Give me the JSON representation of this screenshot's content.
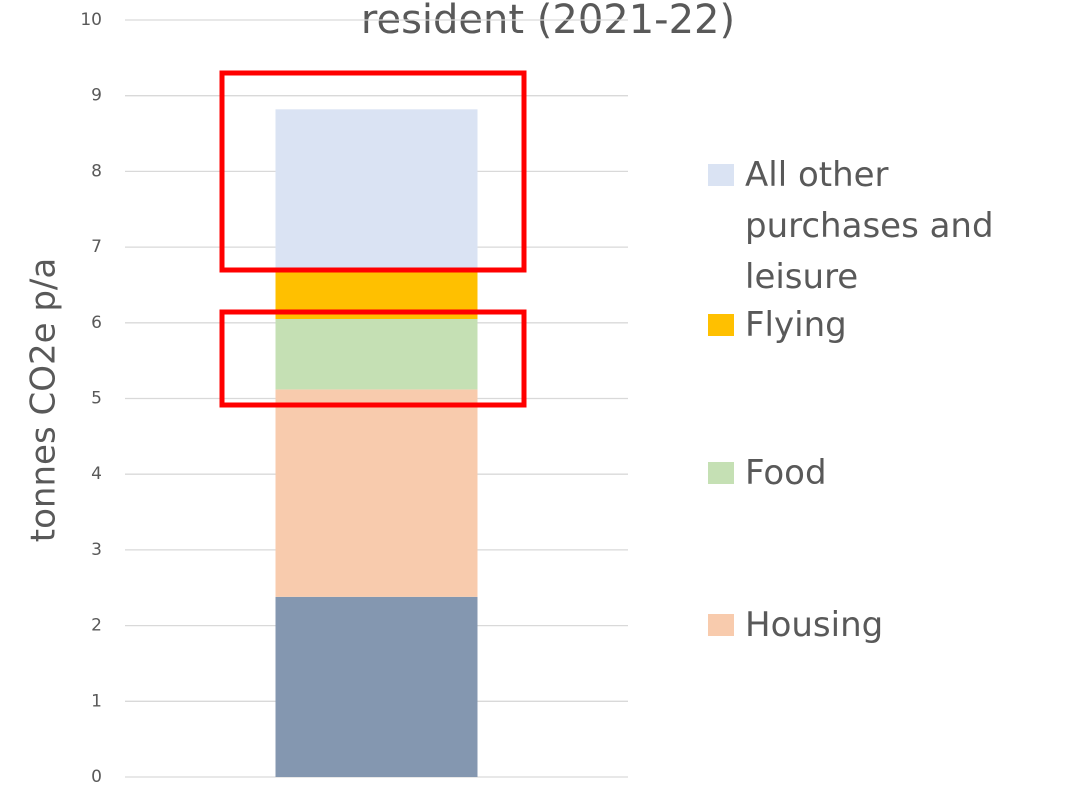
{
  "chart_data": {
    "type": "stacked_bar",
    "title": "resident (2021-22)",
    "y_label": "tonnes CO2e p/a",
    "categories": [
      null
    ],
    "series": [
      {
        "color": "#8497b0",
        "values": [
          2.38
        ]
      },
      {
        "name": "Housing",
        "color": "#f8cbad",
        "values": [
          2.74
        ]
      },
      {
        "name": "Food",
        "color": "#c5e0b4",
        "values": [
          0.93
        ]
      },
      {
        "name": "Flying",
        "color": "#ffc000",
        "values": [
          0.67
        ]
      },
      {
        "name": "All other purchases and leisure",
        "color": "#dae3f3",
        "values": [
          2.1
        ]
      }
    ],
    "ylim": [
      0,
      10
    ],
    "yticks": [
      0,
      1,
      2,
      3,
      4,
      5,
      6,
      7,
      8,
      9,
      10
    ],
    "grid": true,
    "legend": "right"
  }
}
